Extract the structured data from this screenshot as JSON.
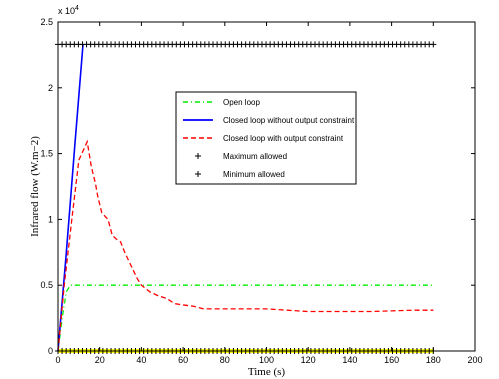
{
  "chart_data": {
    "type": "line",
    "title": "",
    "xlabel": "Time (s)",
    "ylabel": "Infrared flow (W.m−2)",
    "xlim": [
      0,
      200
    ],
    "ylim": [
      0,
      25000
    ],
    "y_exponent_label": "x 10",
    "y_exponent_power": "4",
    "xticks": [
      0,
      20,
      40,
      60,
      80,
      100,
      120,
      140,
      160,
      180,
      200
    ],
    "xtick_labels": [
      "0",
      "20",
      "40",
      "60",
      "80",
      "100",
      "120",
      "140",
      "160",
      "180",
      "200"
    ],
    "yticks": [
      0,
      5000,
      10000,
      15000,
      20000,
      25000
    ],
    "ytick_labels": [
      "0",
      "0.5",
      "1",
      "1.5",
      "2",
      "2.5"
    ],
    "grid": false,
    "legend_position": "center-right",
    "series": [
      {
        "name": "Open loop",
        "style": "dash-dot",
        "color": "#00ee00",
        "x": [
          0,
          2,
          4,
          6,
          180
        ],
        "y": [
          0,
          2500,
          4500,
          5000,
          5000
        ]
      },
      {
        "name": "Closed loop without output constraint",
        "style": "solid",
        "color": "#0000ff",
        "x": [
          0,
          4,
          8,
          12
        ],
        "y": [
          0,
          7500,
          15500,
          23300
        ]
      },
      {
        "name": "Closed loop with output constraint",
        "style": "dashed",
        "color": "#ff0000",
        "x": [
          0,
          3,
          7,
          10,
          14,
          16,
          18,
          19,
          21,
          24,
          26,
          28,
          30,
          32,
          35,
          38,
          40,
          44,
          48,
          52,
          56,
          60,
          65,
          70,
          80,
          100,
          110,
          120,
          130,
          150,
          170,
          180
        ],
        "y": [
          0,
          5000,
          10500,
          14500,
          15900,
          14000,
          12700,
          11800,
          10500,
          10000,
          8800,
          8500,
          8300,
          7500,
          6500,
          5500,
          5000,
          4500,
          4200,
          4000,
          3600,
          3500,
          3400,
          3200,
          3200,
          3200,
          3100,
          3000,
          3000,
          3000,
          3100,
          3100
        ]
      },
      {
        "name": "Maximum allowed",
        "style": "plus-markers",
        "color": "#000000",
        "x": [
          0,
          180
        ],
        "y": [
          23300,
          23300
        ]
      },
      {
        "name": "Minimum  allowed",
        "style": "plus-markers",
        "color": "#000000",
        "x": [
          0,
          180
        ],
        "y": [
          0,
          0
        ]
      }
    ],
    "extra_marks": {
      "bottom_band_color": "#ffff00"
    }
  }
}
